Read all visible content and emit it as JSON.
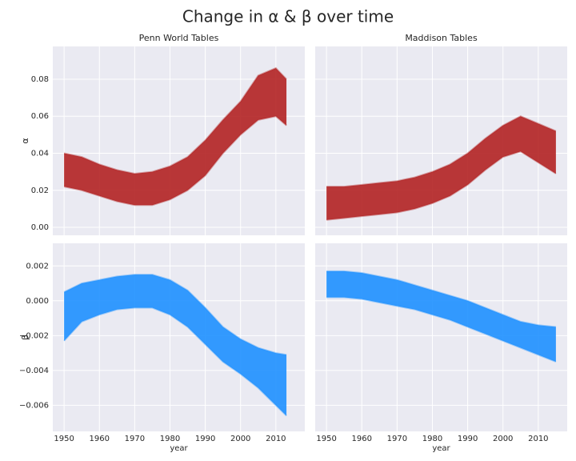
{
  "title": "Change in α & β over time",
  "chart_data": [
    {
      "type": "band",
      "title": "Penn World Tables",
      "ylabel": "α",
      "x": [
        1950,
        1955,
        1960,
        1965,
        1970,
        1975,
        1980,
        1985,
        1990,
        1995,
        2000,
        2005,
        2010,
        2013
      ],
      "series": [
        {
          "color": "#b22222",
          "values": [
            0.022,
            0.02,
            0.017,
            0.014,
            0.012,
            0.012,
            0.015,
            0.02,
            0.028,
            0.04,
            0.05,
            0.058,
            0.06,
            0.055
          ]
        },
        {
          "color": "#b22222",
          "values": [
            0.04,
            0.038,
            0.034,
            0.031,
            0.029,
            0.03,
            0.033,
            0.038,
            0.047,
            0.058,
            0.068,
            0.082,
            0.086,
            0.08
          ]
        }
      ],
      "xlim": [
        1946.8,
        2018.2
      ],
      "xticks": [
        1950,
        1960,
        1970,
        1980,
        1990,
        2000,
        2010
      ],
      "ylim": [
        -0.0043,
        0.0977
      ],
      "yticks": [
        {
          "value": 0,
          "label": "0.00"
        },
        {
          "value": 0.02,
          "label": "0.02"
        },
        {
          "value": 0.04,
          "label": "0.04"
        },
        {
          "value": 0.06,
          "label": "0.06"
        },
        {
          "value": 0.08,
          "label": "0.08"
        }
      ],
      "grid": true
    },
    {
      "type": "band",
      "title": "Maddison Tables",
      "x": [
        1950,
        1955,
        1960,
        1965,
        1970,
        1975,
        1980,
        1985,
        1990,
        1995,
        2000,
        2005,
        2010,
        2015
      ],
      "series": [
        {
          "color": "#b22222",
          "values": [
            0.004,
            0.005,
            0.006,
            0.007,
            0.008,
            0.01,
            0.013,
            0.017,
            0.023,
            0.031,
            0.038,
            0.041,
            0.035,
            0.029
          ]
        },
        {
          "color": "#b22222",
          "values": [
            0.022,
            0.022,
            0.023,
            0.024,
            0.025,
            0.027,
            0.03,
            0.034,
            0.04,
            0.048,
            0.055,
            0.06,
            0.056,
            0.052
          ]
        }
      ],
      "xlim": [
        1946.8,
        2018.2
      ],
      "xticks": [
        1950,
        1960,
        1970,
        1980,
        1990,
        2000,
        2010
      ],
      "ylim": [
        -0.0043,
        0.0977
      ],
      "yticks": [
        0,
        0.02,
        0.04,
        0.06,
        0.08
      ],
      "grid": true
    },
    {
      "type": "band",
      "ylabel": "β",
      "xlabel": "year",
      "x": [
        1950,
        1955,
        1960,
        1965,
        1970,
        1975,
        1980,
        1985,
        1990,
        1995,
        2000,
        2005,
        2010,
        2013
      ],
      "series": [
        {
          "color": "#1e90ff",
          "values": [
            -0.0023,
            -0.0012,
            -0.0008,
            -0.0005,
            -0.0004,
            -0.0004,
            -0.0008,
            -0.0015,
            -0.0025,
            -0.0035,
            -0.0042,
            -0.005,
            -0.006,
            -0.0066
          ]
        },
        {
          "color": "#1e90ff",
          "values": [
            0.0005,
            0.001,
            0.0012,
            0.0014,
            0.0015,
            0.0015,
            0.0012,
            0.0006,
            -0.0004,
            -0.0015,
            -0.0022,
            -0.0027,
            -0.003,
            -0.0031
          ]
        }
      ],
      "xlim": [
        1946.8,
        2018.2
      ],
      "xticks": [
        1950,
        1960,
        1970,
        1980,
        1990,
        2000,
        2010
      ],
      "ylim": [
        -0.0075,
        0.0033
      ],
      "yticks": [
        {
          "value": -0.006,
          "label": "−0.006"
        },
        {
          "value": -0.004,
          "label": "−0.004"
        },
        {
          "value": -0.002,
          "label": "−0.002"
        },
        {
          "value": 0,
          "label": "0.000"
        },
        {
          "value": 0.002,
          "label": "0.002"
        }
      ],
      "grid": true
    },
    {
      "type": "band",
      "xlabel": "year",
      "x": [
        1950,
        1955,
        1960,
        1965,
        1970,
        1975,
        1980,
        1985,
        1990,
        1995,
        2000,
        2005,
        2010,
        2015
      ],
      "series": [
        {
          "color": "#1e90ff",
          "values": [
            0.0002,
            0.0002,
            0.0001,
            -0.0001,
            -0.0003,
            -0.0005,
            -0.0008,
            -0.0011,
            -0.0015,
            -0.0019,
            -0.0023,
            -0.0027,
            -0.0031,
            -0.0035
          ]
        },
        {
          "color": "#1e90ff",
          "values": [
            0.0017,
            0.0017,
            0.0016,
            0.0014,
            0.0012,
            0.0009,
            0.0006,
            0.0003,
            0.0,
            -0.0004,
            -0.0008,
            -0.0012,
            -0.0014,
            -0.0015
          ]
        }
      ],
      "xlim": [
        1946.8,
        2018.2
      ],
      "xticks": [
        1950,
        1960,
        1970,
        1980,
        1990,
        2000,
        2010
      ],
      "ylim": [
        -0.0075,
        0.0033
      ],
      "yticks": [
        -0.006,
        -0.004,
        -0.002,
        0,
        0.002
      ],
      "grid": true
    }
  ]
}
